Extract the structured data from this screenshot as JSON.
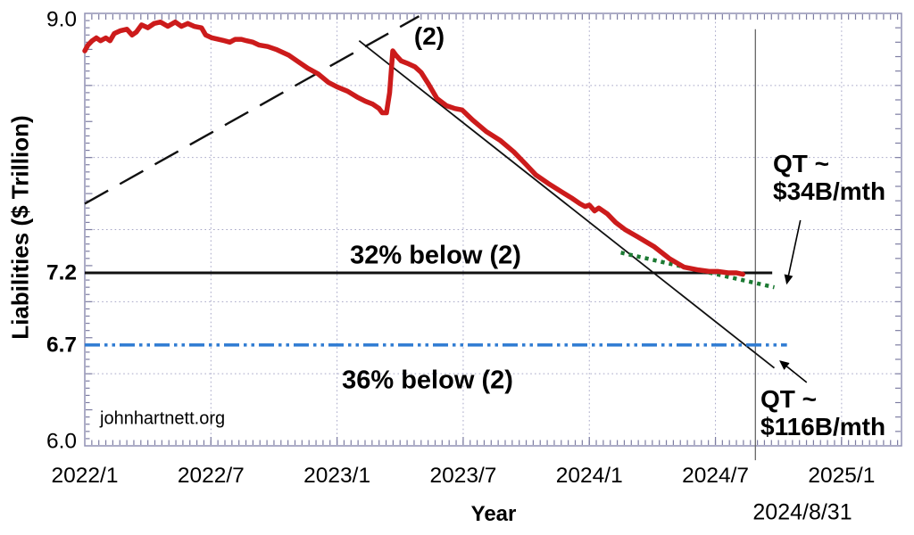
{
  "page": {
    "background": "#ffffff"
  },
  "chart_data": {
    "type": "line",
    "title": "",
    "xlabel": "Year",
    "ylabel": "Liabilities ($ Trillion)",
    "grid": true,
    "legend": false,
    "x_axis": {
      "unit": "months since 2022/1",
      "range": [
        0,
        38.85
      ],
      "tick_labels": [
        {
          "m": 0,
          "label": "2022/1"
        },
        {
          "m": 6,
          "label": "2022/7"
        },
        {
          "m": 12,
          "label": "2023/1"
        },
        {
          "m": 18,
          "label": "2023/7"
        },
        {
          "m": 24,
          "label": "2024/1"
        },
        {
          "m": 30,
          "label": "2024/7"
        },
        {
          "m": 36,
          "label": "2025/1"
        }
      ],
      "minor_tick_step": 0.3333,
      "gridlines_months": [
        6,
        12,
        18,
        24,
        30,
        36
      ]
    },
    "y_axis": {
      "range": [
        6.0,
        9.0
      ],
      "tick_labels": [
        {
          "v": 9.0,
          "label": "9.0",
          "bold": false
        },
        {
          "v": 7.2,
          "label": "7.2",
          "bold": true
        },
        {
          "v": 6.7,
          "label": "6.7",
          "bold": true
        },
        {
          "v": 6.0,
          "label": "6.0",
          "bold": false
        }
      ],
      "minor_tick_step": 0.05,
      "medium_tick_step": 0.25,
      "right_tick_step": 0.1,
      "gridlines_values": [
        8.5,
        8.0,
        7.5,
        7.0,
        6.5
      ]
    },
    "series": [
      {
        "name": "line-2-projection",
        "style": "dashed",
        "color": "#111111",
        "width": 2.4,
        "points": [
          [
            0,
            7.68
          ],
          [
            15.9,
            8.98
          ]
        ]
      },
      {
        "name": "qt-116-trendline",
        "style": "solid",
        "color": "#111111",
        "width": 1.8,
        "points": [
          [
            13.05,
            8.81
          ],
          [
            32.8,
            6.54
          ]
        ]
      },
      {
        "name": "level-32pct-below",
        "style": "solid",
        "color": "#101010",
        "width": 3,
        "points": [
          [
            0,
            7.2
          ],
          [
            32.7,
            7.2
          ]
        ]
      },
      {
        "name": "level-36pct-below",
        "style": "dashdotdot",
        "color": "#2e7bd2",
        "width": 3.5,
        "points": [
          [
            0,
            6.7
          ],
          [
            33.4,
            6.7
          ]
        ]
      },
      {
        "name": "qt-34-trendline",
        "style": "dotted",
        "color": "#1c7a33",
        "width": 4.5,
        "points": [
          [
            25.5,
            7.34
          ],
          [
            32.8,
            7.1
          ]
        ]
      },
      {
        "name": "fed-liabilities",
        "style": "solid",
        "color": "#cc1b1b",
        "width": 5.5,
        "points": [
          [
            0,
            8.74
          ],
          [
            0.15,
            8.78
          ],
          [
            0.35,
            8.81
          ],
          [
            0.55,
            8.83
          ],
          [
            0.75,
            8.81
          ],
          [
            1,
            8.83
          ],
          [
            1.2,
            8.81
          ],
          [
            1.4,
            8.86
          ],
          [
            1.7,
            8.88
          ],
          [
            2,
            8.89
          ],
          [
            2.25,
            8.85
          ],
          [
            2.45,
            8.87
          ],
          [
            2.7,
            8.92
          ],
          [
            3,
            8.9
          ],
          [
            3.3,
            8.93
          ],
          [
            3.6,
            8.94
          ],
          [
            3.95,
            8.91
          ],
          [
            4.3,
            8.94
          ],
          [
            4.6,
            8.91
          ],
          [
            4.9,
            8.93
          ],
          [
            5.2,
            8.91
          ],
          [
            5.55,
            8.9
          ],
          [
            5.75,
            8.85
          ],
          [
            6.05,
            8.83
          ],
          [
            6.35,
            8.82
          ],
          [
            6.65,
            8.81
          ],
          [
            6.9,
            8.8
          ],
          [
            7.15,
            8.82
          ],
          [
            7.45,
            8.82
          ],
          [
            7.7,
            8.81
          ],
          [
            8,
            8.8
          ],
          [
            8.3,
            8.78
          ],
          [
            8.7,
            8.77
          ],
          [
            9.1,
            8.75
          ],
          [
            9.7,
            8.71
          ],
          [
            10.2,
            8.66
          ],
          [
            10.6,
            8.62
          ],
          [
            11.1,
            8.58
          ],
          [
            11.6,
            8.52
          ],
          [
            12,
            8.49
          ],
          [
            12.5,
            8.46
          ],
          [
            12.95,
            8.42
          ],
          [
            13.35,
            8.39
          ],
          [
            13.7,
            8.37
          ],
          [
            14,
            8.34
          ],
          [
            14.15,
            8.31
          ],
          [
            14.35,
            8.31
          ],
          [
            14.5,
            8.45
          ],
          [
            14.65,
            8.74
          ],
          [
            14.8,
            8.71
          ],
          [
            15.05,
            8.67
          ],
          [
            15.4,
            8.65
          ],
          [
            15.7,
            8.63
          ],
          [
            16,
            8.59
          ],
          [
            16.35,
            8.51
          ],
          [
            16.75,
            8.41
          ],
          [
            17.2,
            8.36
          ],
          [
            17.6,
            8.34
          ],
          [
            17.95,
            8.33
          ],
          [
            18.45,
            8.26
          ],
          [
            19.1,
            8.18
          ],
          [
            19.75,
            8.12
          ],
          [
            20.4,
            8.04
          ],
          [
            21,
            7.95
          ],
          [
            21.45,
            7.88
          ],
          [
            22.05,
            7.82
          ],
          [
            22.7,
            7.76
          ],
          [
            23.15,
            7.72
          ],
          [
            23.55,
            7.68
          ],
          [
            23.8,
            7.66
          ],
          [
            24,
            7.67
          ],
          [
            24.25,
            7.63
          ],
          [
            24.45,
            7.65
          ],
          [
            24.85,
            7.61
          ],
          [
            25.25,
            7.55
          ],
          [
            25.7,
            7.5
          ],
          [
            26.3,
            7.45
          ],
          [
            27.1,
            7.38
          ],
          [
            27.8,
            7.3
          ],
          [
            28.5,
            7.24
          ],
          [
            29.2,
            7.22
          ],
          [
            29.7,
            7.21
          ],
          [
            30.1,
            7.21
          ],
          [
            30.6,
            7.2
          ],
          [
            31,
            7.2
          ],
          [
            31.3,
            7.19
          ]
        ]
      }
    ],
    "date_marker": {
      "month": 31.9,
      "v_range": [
        5.9,
        8.89
      ],
      "color": "#666666",
      "width": 1.3
    },
    "arrows": [
      {
        "name": "arrow-to-qt34-line",
        "from_m": 34.04,
        "from_v": 7.565,
        "to_m": 33.4,
        "to_v": 7.13
      },
      {
        "name": "arrow-to-qt116-line",
        "from_m": 34.34,
        "from_v": 6.44,
        "to_m": 33.1,
        "to_v": 6.585
      }
    ],
    "annotations": {
      "line2": "(2)",
      "below32": "32% below (2)",
      "below36": "36% below (2)",
      "qt34": "QT ~\n$34B/mth",
      "qt116": "QT ~\n$116B/mth",
      "watermark": "johnhartnett.org",
      "date": "2024/8/31"
    }
  }
}
